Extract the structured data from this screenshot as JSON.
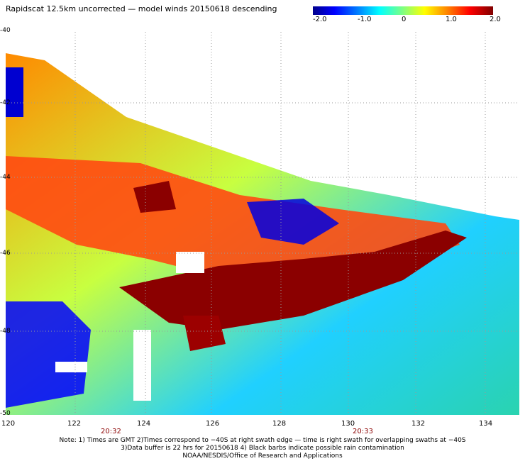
{
  "title": "Rapidscat 12.5km uncorrected — model winds 20150618 descending",
  "colorbar": {
    "labels": [
      "-2.0",
      "-1.0",
      "0",
      "1.0",
      "2.0"
    ],
    "colors": [
      "#00008c",
      "#0000ff",
      "#0080ff",
      "#00ffff",
      "#80ff80",
      "#ffff00",
      "#ff8000",
      "#ff0000",
      "#800000"
    ]
  },
  "axes": {
    "x_ticks": [
      "120",
      "122",
      "124",
      "126",
      "128",
      "130",
      "132",
      "134"
    ],
    "y_ticks": [
      "-40",
      "-42",
      "-44",
      "-46",
      "-48",
      "-50"
    ]
  },
  "times": [
    "20:32",
    "20:33"
  ],
  "notes": [
    "Note: 1) Times are GMT 2)Times correspond to −40S at right swath edge — time is right swath for overlapping swaths at −40S",
    "3)Data buffer is 22 hrs for 20150618 4) Black barbs indicate possible rain contamination",
    "NOAA/NESDIS/Office of Research and Applications"
  ]
}
